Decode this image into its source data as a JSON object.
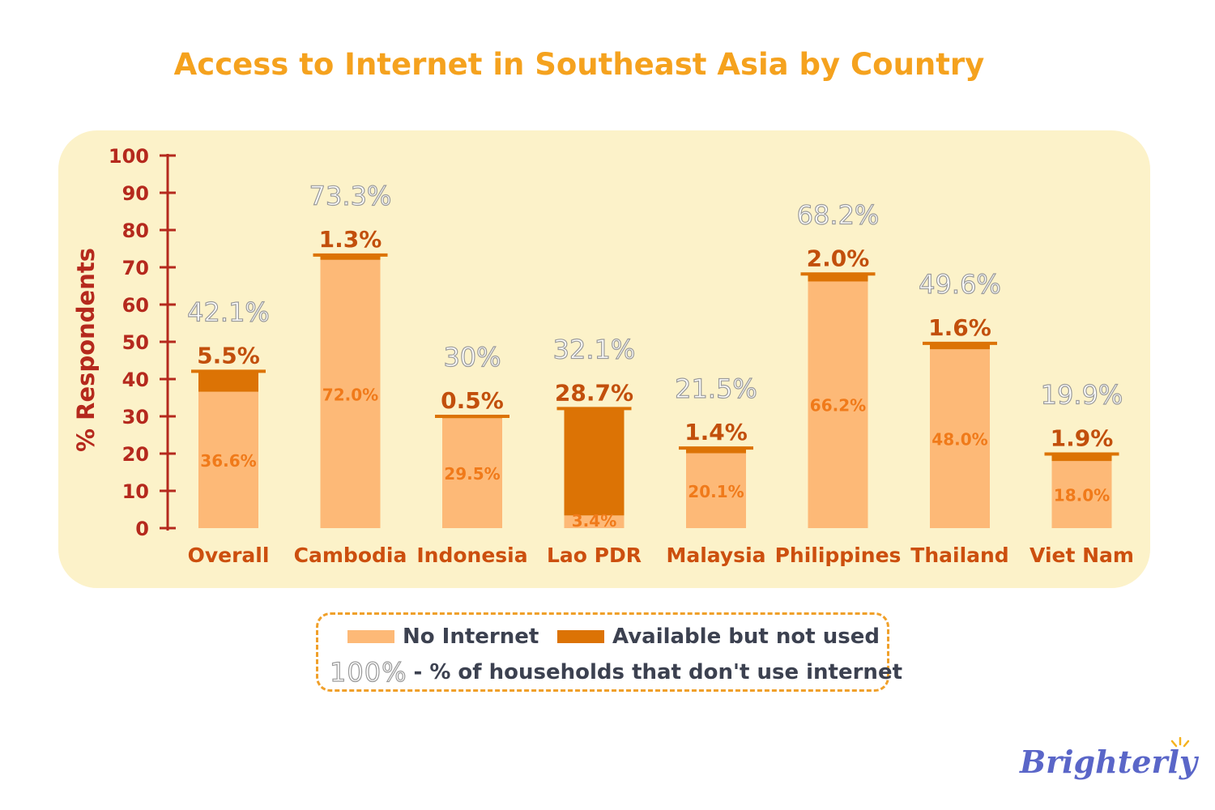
{
  "chart_data": {
    "type": "bar",
    "stacked": true,
    "title": "Access to Internet in Southeast Asia by Country",
    "ylabel": "% Respondents",
    "ylim": [
      0,
      100
    ],
    "yticks": [
      0,
      10,
      20,
      30,
      40,
      50,
      60,
      70,
      80,
      90,
      100
    ],
    "categories": [
      "Overall",
      "Cambodia",
      "Indonesia",
      "Lao PDR",
      "Malaysia",
      "Philippines",
      "Thailand",
      "Viet Nam"
    ],
    "series": [
      {
        "name": "No Internet",
        "color": "#fdb977",
        "values": [
          36.6,
          72.0,
          29.5,
          3.4,
          20.1,
          66.2,
          48.0,
          18.0
        ],
        "labels": [
          "36.6%",
          "72.0%",
          "29.5%",
          "3.4%",
          "20.1%",
          "66.2%",
          "48.0%",
          "18.0%"
        ]
      },
      {
        "name": "Available but not used",
        "color": "#dc7305",
        "values": [
          5.5,
          1.3,
          0.5,
          28.7,
          1.4,
          2.0,
          1.6,
          1.9
        ],
        "labels": [
          "5.5%",
          "1.3%",
          "0.5%",
          "28.7%",
          "1.4%",
          "2.0%",
          "1.6%",
          "1.9%"
        ]
      }
    ],
    "totals": [
      "42.1%",
      "73.3%",
      "30%",
      "32.1%",
      "21.5%",
      "68.2%",
      "49.6%",
      "19.9%"
    ],
    "legend_position": "bottom"
  },
  "legend": {
    "no_internet": "No Internet",
    "available_not_used": "Available but not used",
    "note_pct": "100%",
    "note_text": "- % of households that don't use internet"
  },
  "brand": {
    "name": "Brighterly"
  },
  "colors": {
    "title": "#f5a21e",
    "axis": "#b5291d",
    "category_label": "#cc4f0e",
    "no_internet": "#fdb977",
    "available": "#dc7305",
    "inner_label": "#f07a1a",
    "outer_label": "#c24f0c",
    "total_stroke": "#9a9a9a",
    "panel": "#fcf2c9"
  }
}
